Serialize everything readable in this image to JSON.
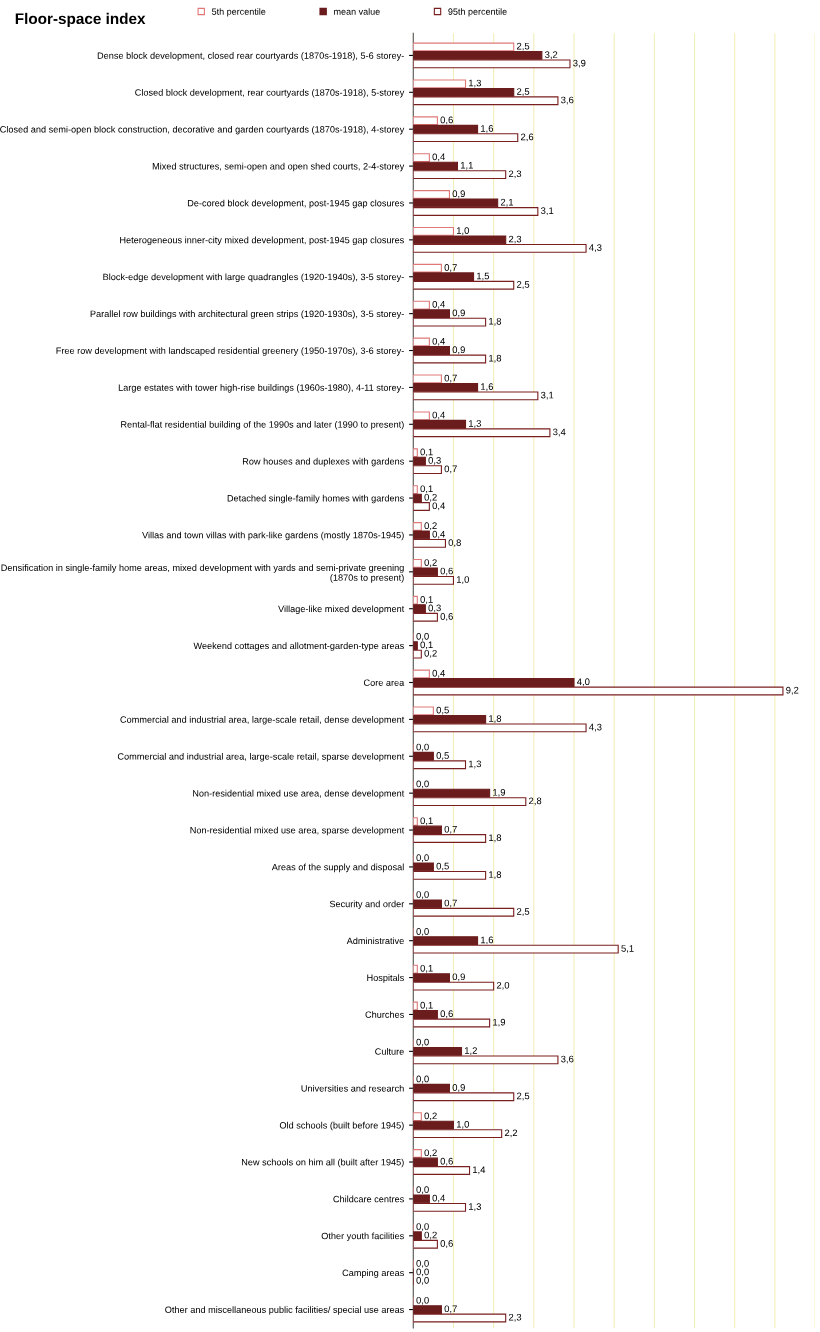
{
  "chart_data": {
    "type": "bar",
    "orientation": "horizontal",
    "title": "Floor-space index",
    "legend": "top",
    "grid": "x",
    "tick_labels": "y",
    "xlim": [
      0,
      10
    ],
    "xticks": [
      {
        "value": 0,
        "label": null
      },
      {
        "value": 1,
        "label": null
      },
      {
        "value": 2,
        "label": null
      },
      {
        "value": 3,
        "label": null
      },
      {
        "value": 4,
        "label": null
      },
      {
        "value": 5,
        "label": null
      },
      {
        "value": 6,
        "label": null
      },
      {
        "value": 7,
        "label": null
      },
      {
        "value": 8,
        "label": null
      },
      {
        "value": 9,
        "label": null
      },
      {
        "value": 10,
        "label": null
      }
    ],
    "categories": [
      "Dense block development, closed rear courtyards (1870s-1918), 5-6 storey-",
      "Closed block development, rear courtyards (1870s-1918), 5-storey",
      "Closed and semi-open block construction, decorative and garden courtyards (1870s-1918), 4-storey",
      "Mixed structures, semi-open and open shed courts, 2-4-storey",
      "De-cored block development, post-1945 gap closures",
      "Heterogeneous inner-city mixed development, post-1945 gap closures",
      "Block-edge development with large quadrangles (1920-1940s), 3-5 storey-",
      "Parallel row buildings with architectural green strips (1920-1930s), 3-5 storey-",
      "Free row development with landscaped residential greenery (1950-1970s), 3-6 storey-",
      "Large estates with tower high-rise buildings (1960s-1980), 4-11 storey-",
      "Rental-flat residential building of the 1990s and later (1990 to present)",
      "Row houses and duplexes with gardens",
      "Detached single-family homes with gardens",
      "Villas and town villas with park-like gardens (mostly 1870s-1945)",
      "Densification in single-family home areas, mixed development with yards and semi-private greening\n(1870s to present)",
      "Village-like mixed development",
      "Weekend cottages and allotment-garden-type areas",
      "Core area",
      "Commercial and industrial area, large-scale retail, dense development",
      "Commercial and industrial area, large-scale retail, sparse development",
      "Non-residential mixed use area, dense development",
      "Non-residential mixed use area, sparse development",
      "Areas of the supply and disposal",
      "Security and order",
      "Administrative",
      "Hospitals",
      "Churches",
      "Culture",
      "Universities and research",
      "Old schools (built before 1945)",
      "New schools on him all (built after 1945)",
      "Childcare centres",
      "Other youth facilities",
      "Camping areas",
      "Other and miscellaneous public facilities/ special use areas"
    ],
    "series": [
      {
        "name": "5th percentile",
        "color": "#e07878",
        "values": [
          2.5,
          1.3,
          0.6,
          0.4,
          0.9,
          1.0,
          0.7,
          0.4,
          0.4,
          0.7,
          0.4,
          0.1,
          0.1,
          0.2,
          0.2,
          0.1,
          0.0,
          0.4,
          0.5,
          0.0,
          0.0,
          0.1,
          0.0,
          0.0,
          0.0,
          0.1,
          0.1,
          0.0,
          0.0,
          0.2,
          0.2,
          0.0,
          0.0,
          0.0,
          0.0
        ],
        "value_labels": [
          "2,5",
          "1,3",
          "0,6",
          "0,4",
          "0,9",
          "1,0",
          "0,7",
          "0,4",
          "0,4",
          "0,7",
          "0,4",
          "0,1",
          "0,1",
          "0,2",
          "0,2",
          "0,1",
          "0,0",
          "0,4",
          "0,5",
          "0,0",
          "0,0",
          "0,1",
          "0,0",
          "0,0",
          "0,0",
          "0,1",
          "0,1",
          "0,0",
          "0,0",
          "0,2",
          "0,2",
          "0,0",
          "0,0",
          "0,0",
          "0,0"
        ]
      },
      {
        "name": "mean value",
        "color": "#6b1c1c",
        "values": [
          3.2,
          2.5,
          1.6,
          1.1,
          2.1,
          2.3,
          1.5,
          0.9,
          0.9,
          1.6,
          1.3,
          0.3,
          0.2,
          0.4,
          0.6,
          0.3,
          0.1,
          4.0,
          1.8,
          0.5,
          1.9,
          0.7,
          0.5,
          0.7,
          1.6,
          0.9,
          0.6,
          1.2,
          0.9,
          1.0,
          0.6,
          0.4,
          0.2,
          0.0,
          0.7
        ],
        "value_labels": [
          "3,2",
          "2,5",
          "1,6",
          "1,1",
          "2,1",
          "2,3",
          "1,5",
          "0,9",
          "0,9",
          "1,6",
          "1,3",
          "0,3",
          "0,2",
          "0,4",
          "0,6",
          "0,3",
          "0,1",
          "4,0",
          "1,8",
          "0,5",
          "1,9",
          "0,7",
          "0,5",
          "0,7",
          "1,6",
          "0,9",
          "0,6",
          "1,2",
          "0,9",
          "1,0",
          "0,6",
          "0,4",
          "0,2",
          "0,0",
          "0,7"
        ]
      },
      {
        "name": "95th percentile",
        "color": "#7a1f1f",
        "values": [
          3.9,
          3.6,
          2.6,
          2.3,
          3.1,
          4.3,
          2.5,
          1.8,
          1.8,
          3.1,
          3.4,
          0.7,
          0.4,
          0.8,
          1.0,
          0.6,
          0.2,
          9.2,
          4.3,
          1.3,
          2.8,
          1.8,
          1.8,
          2.5,
          5.1,
          2.0,
          1.9,
          3.6,
          2.5,
          2.2,
          1.4,
          1.3,
          0.6,
          0.0,
          2.3
        ],
        "value_labels": [
          "3,9",
          "3,6",
          "2,6",
          "2,3",
          "3,1",
          "4,3",
          "2,5",
          "1,8",
          "1,8",
          "3,1",
          "3,4",
          "0,7",
          "0,4",
          "0,8",
          "1,0",
          "0,6",
          "0,2",
          "9,2",
          "4,3",
          "1,3",
          "2,8",
          "1,8",
          "1,8",
          "2,5",
          "5,1",
          "2,0",
          "1,9",
          "3,6",
          "2,5",
          "2,2",
          "1,4",
          "1,3",
          "0,6",
          "0,0",
          "2,3"
        ]
      }
    ]
  }
}
